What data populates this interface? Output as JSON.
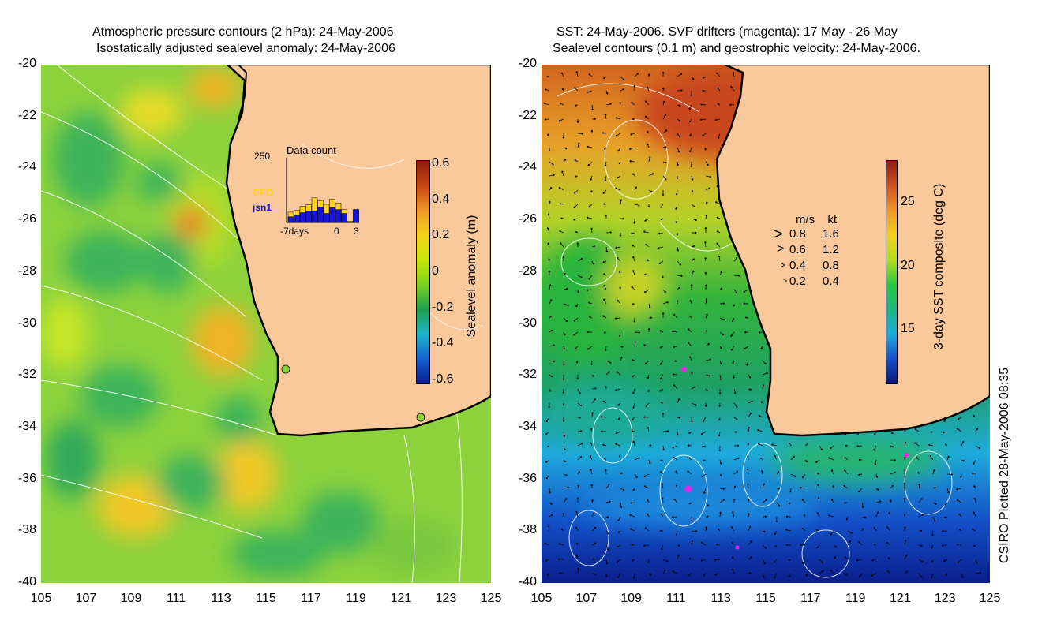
{
  "left_panel": {
    "title_line1": "Atmospheric pressure contours (2 hPa): 24-May-2006",
    "title_line2": "Isostatically adjusted sealevel anomaly: 24-May-2006",
    "colorbar_label": "Sealevel anomaly (m)",
    "colorbar_ticks": [
      "0.6",
      "0.4",
      "0.2",
      "0",
      "-0.2",
      "-0.4",
      "-0.6"
    ],
    "colorbar_colors": [
      "#0a1a8c",
      "#1464d2",
      "#1eb4c8",
      "#1e9e50",
      "#7cd21e",
      "#c8e60a",
      "#f5d21e",
      "#f09628",
      "#c84614",
      "#8c1e0a"
    ],
    "inset": {
      "title": "Data count",
      "ymax_label": "250",
      "series_labels": [
        "GFO",
        "jsn1"
      ],
      "series_colors": [
        "#ffd21e",
        "#1414dc"
      ],
      "xlabels": [
        "-7days",
        "0",
        "3"
      ],
      "bars": [
        {
          "total": 40,
          "jsn1": 22
        },
        {
          "total": 48,
          "jsn1": 28
        },
        {
          "total": 62,
          "jsn1": 38
        },
        {
          "total": 68,
          "jsn1": 44
        },
        {
          "total": 95,
          "jsn1": 45
        },
        {
          "total": 85,
          "jsn1": 60
        },
        {
          "total": 70,
          "jsn1": 35
        },
        {
          "total": 90,
          "jsn1": 58
        },
        {
          "total": 75,
          "jsn1": 50
        },
        {
          "total": 50,
          "jsn1": 35
        },
        {
          "total": 5,
          "jsn1": 0
        },
        {
          "total": 50,
          "jsn1": 50
        }
      ],
      "ylim": [
        0,
        250
      ]
    }
  },
  "right_panel": {
    "title_line1": "SST: 24-May-2006. SVP drifters (magenta): 17 May - 26 May",
    "title_line2": "Sealevel contours (0.1 m) and geostrophic velocity: 24-May-2006.",
    "colorbar_label": "3-day SST composite (deg C)",
    "colorbar_ticks": [
      "25",
      "20",
      "15"
    ],
    "colorbar_colors": [
      "#0a1478",
      "#1450c8",
      "#1eaadc",
      "#1eb482",
      "#28c83c",
      "#b4dc1e",
      "#f0d21e",
      "#f09628",
      "#d2501e",
      "#8c1e0a"
    ],
    "legend_header": [
      "m/s",
      "kt"
    ],
    "legend_rows": [
      [
        "0.8",
        "1.6"
      ],
      [
        "0.6",
        "1.2"
      ],
      [
        "0.4",
        "0.8"
      ],
      [
        "0.2",
        "0.4"
      ]
    ]
  },
  "axes": {
    "lat_ticks": [
      "-20",
      "-22",
      "-24",
      "-26",
      "-28",
      "-30",
      "-32",
      "-34",
      "-36",
      "-38",
      "-40"
    ],
    "lon_ticks": [
      "105",
      "107",
      "109",
      "111",
      "113",
      "115",
      "117",
      "119",
      "121",
      "123",
      "125"
    ]
  },
  "colors": {
    "land": "#f9c89b",
    "coastline": "#000000",
    "contours": "#ffffff"
  },
  "footer": "CSIRO Plotted 28-May-2006 08:35"
}
